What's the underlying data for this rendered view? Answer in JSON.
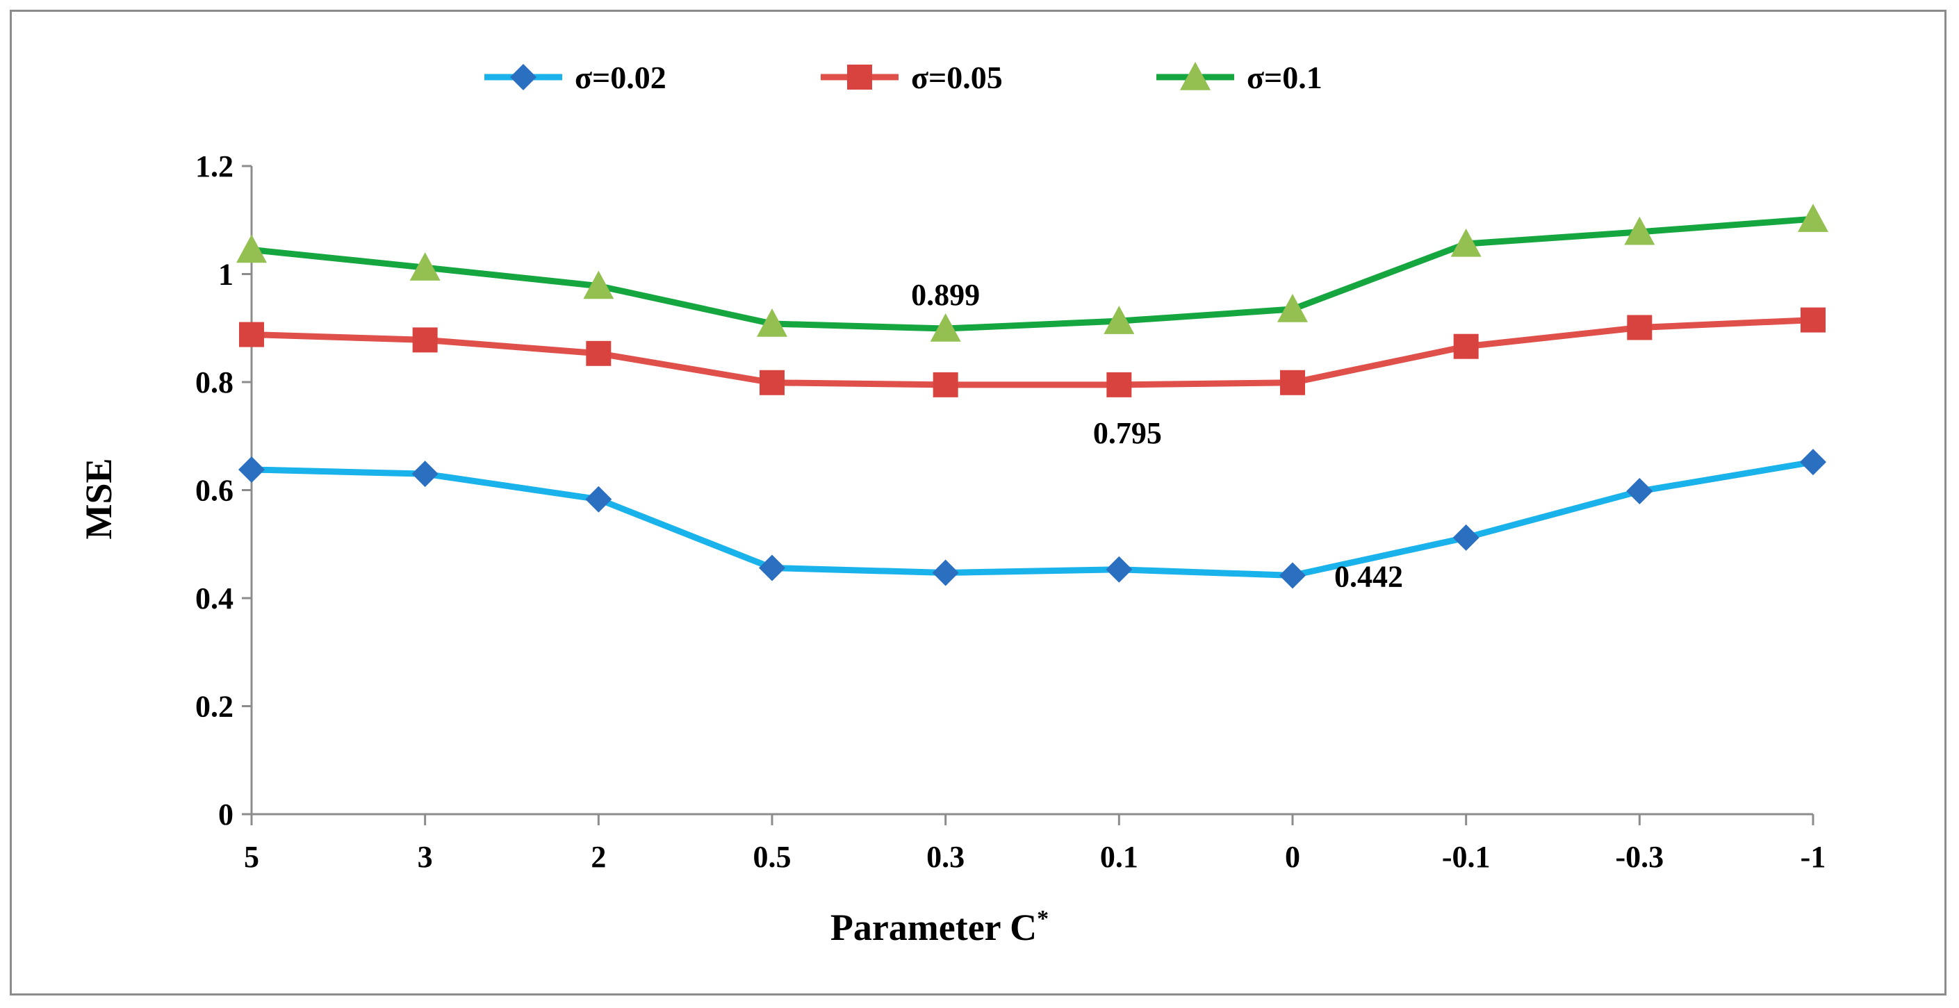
{
  "chart_data": {
    "type": "line",
    "title": "",
    "xlabel": "Parameter C",
    "xlabel_sup": "*",
    "ylabel": "MSE",
    "categories": [
      "5",
      "3",
      "2",
      "0.5",
      "0.3",
      "0.1",
      "0",
      "-0.1",
      "-0.3",
      "-1"
    ],
    "ylim": [
      0,
      1.2
    ],
    "yticks": [
      "0",
      "0.2",
      "0.4",
      "0.6",
      "0.8",
      "1",
      "1.2"
    ],
    "legend_position": "top",
    "grid": false,
    "series": [
      {
        "name": "σ=0.02",
        "color": "#1ab2ea",
        "marker_color": "#2a6fc0",
        "marker": "diamond",
        "values": [
          0.638,
          0.63,
          0.583,
          0.456,
          0.447,
          0.453,
          0.442,
          0.512,
          0.598,
          0.652
        ]
      },
      {
        "name": "σ=0.05",
        "color": "#e0504b",
        "marker_color": "#d9433f",
        "marker": "square",
        "values": [
          0.888,
          0.878,
          0.853,
          0.799,
          0.795,
          0.795,
          0.799,
          0.866,
          0.901,
          0.915
        ]
      },
      {
        "name": "σ=0.1",
        "color": "#16a640",
        "marker_color": "#93c050",
        "marker": "triangle",
        "values": [
          1.045,
          1.012,
          0.978,
          0.908,
          0.899,
          0.913,
          0.935,
          1.056,
          1.078,
          1.102
        ]
      }
    ],
    "annotations": [
      {
        "text": "0.899",
        "series": 2,
        "index": 4
      },
      {
        "text": "0.795",
        "series": 1,
        "index": 5
      },
      {
        "text": "0.442",
        "series": 0,
        "index": 6
      }
    ]
  }
}
